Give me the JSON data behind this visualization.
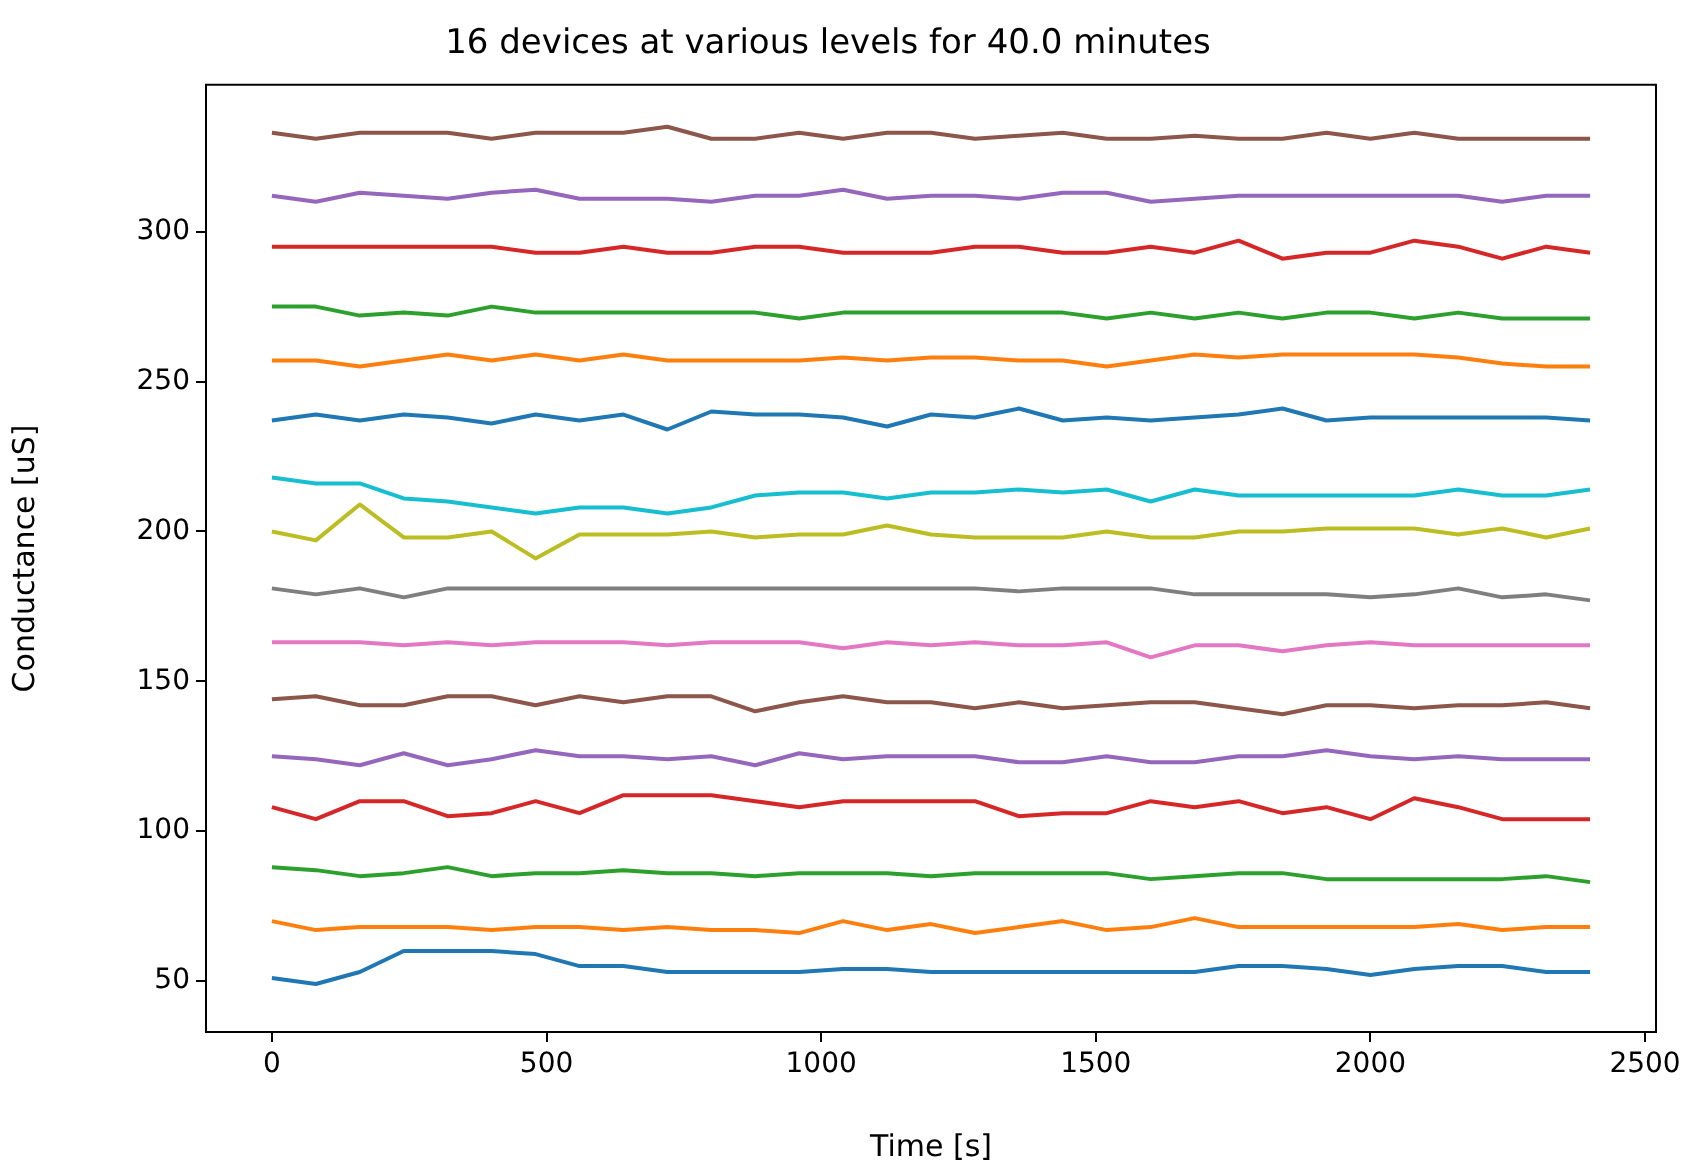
{
  "chart_data": {
    "type": "line",
    "title": "16 devices at various levels for 40.0 minutes",
    "xlabel": "Time [s]",
    "ylabel": "Conductance [uS]",
    "x": [
      0,
      80,
      160,
      240,
      320,
      400,
      480,
      560,
      640,
      720,
      800,
      880,
      960,
      1040,
      1120,
      1200,
      1280,
      1360,
      1440,
      1520,
      1600,
      1680,
      1760,
      1840,
      1920,
      2000,
      2080,
      2160,
      2240,
      2320,
      2400
    ],
    "series": [
      {
        "color": "#1f77b4",
        "values": [
          51,
          49,
          53,
          60,
          60,
          60,
          59,
          55,
          55,
          53,
          53,
          53,
          53,
          54,
          54,
          53,
          53,
          53,
          53,
          53,
          53,
          53,
          55,
          55,
          54,
          52,
          54,
          55,
          55,
          53,
          53
        ]
      },
      {
        "color": "#ff7f0e",
        "values": [
          70,
          67,
          68,
          68,
          68,
          67,
          68,
          68,
          67,
          68,
          67,
          67,
          66,
          70,
          67,
          69,
          66,
          68,
          70,
          67,
          68,
          71,
          68,
          68,
          68,
          68,
          68,
          69,
          67,
          68,
          68
        ]
      },
      {
        "color": "#2ca02c",
        "values": [
          88,
          87,
          85,
          86,
          88,
          85,
          86,
          86,
          87,
          86,
          86,
          85,
          86,
          86,
          86,
          85,
          86,
          86,
          86,
          86,
          84,
          85,
          86,
          86,
          84,
          84,
          84,
          84,
          84,
          85,
          83
        ]
      },
      {
        "color": "#d62728",
        "values": [
          108,
          104,
          110,
          110,
          105,
          106,
          110,
          106,
          112,
          112,
          112,
          110,
          108,
          110,
          110,
          110,
          110,
          105,
          106,
          106,
          110,
          108,
          110,
          106,
          108,
          104,
          111,
          108,
          104,
          104,
          104
        ]
      },
      {
        "color": "#9467bd",
        "values": [
          125,
          124,
          122,
          126,
          122,
          124,
          127,
          125,
          125,
          124,
          125,
          122,
          126,
          124,
          125,
          125,
          125,
          123,
          123,
          125,
          123,
          123,
          125,
          125,
          127,
          125,
          124,
          125,
          124,
          124,
          124
        ]
      },
      {
        "color": "#8c564b",
        "values": [
          144,
          145,
          142,
          142,
          145,
          145,
          142,
          145,
          143,
          145,
          145,
          140,
          143,
          145,
          143,
          143,
          141,
          143,
          141,
          142,
          143,
          143,
          141,
          139,
          142,
          142,
          141,
          142,
          142,
          143,
          141
        ]
      },
      {
        "color": "#e377c2",
        "values": [
          163,
          163,
          163,
          162,
          163,
          162,
          163,
          163,
          163,
          162,
          163,
          163,
          163,
          161,
          163,
          162,
          163,
          162,
          162,
          163,
          158,
          162,
          162,
          160,
          162,
          163,
          162,
          162,
          162,
          162,
          162
        ]
      },
      {
        "color": "#7f7f7f",
        "values": [
          181,
          179,
          181,
          178,
          181,
          181,
          181,
          181,
          181,
          181,
          181,
          181,
          181,
          181,
          181,
          181,
          181,
          180,
          181,
          181,
          181,
          179,
          179,
          179,
          179,
          178,
          179,
          181,
          178,
          179,
          177
        ]
      },
      {
        "color": "#bcbd22",
        "values": [
          200,
          197,
          209,
          198,
          198,
          200,
          191,
          199,
          199,
          199,
          200,
          198,
          199,
          199,
          202,
          199,
          198,
          198,
          198,
          200,
          198,
          198,
          200,
          200,
          201,
          201,
          201,
          199,
          201,
          198,
          201
        ]
      },
      {
        "color": "#17becf",
        "values": [
          218,
          216,
          216,
          211,
          210,
          208,
          206,
          208,
          208,
          206,
          208,
          212,
          213,
          213,
          211,
          213,
          213,
          214,
          213,
          214,
          210,
          214,
          212,
          212,
          212,
          212,
          212,
          214,
          212,
          212,
          214
        ]
      },
      {
        "color": "#1f77b4",
        "values": [
          237,
          239,
          237,
          239,
          238,
          236,
          239,
          237,
          239,
          234,
          240,
          239,
          239,
          238,
          235,
          239,
          238,
          241,
          237,
          238,
          237,
          238,
          239,
          241,
          237,
          238,
          238,
          238,
          238,
          238,
          237
        ]
      },
      {
        "color": "#ff7f0e",
        "values": [
          257,
          257,
          255,
          257,
          259,
          257,
          259,
          257,
          259,
          257,
          257,
          257,
          257,
          258,
          257,
          258,
          258,
          257,
          257,
          255,
          257,
          259,
          258,
          259,
          259,
          259,
          259,
          258,
          256,
          255,
          255
        ]
      },
      {
        "color": "#2ca02c",
        "values": [
          275,
          275,
          272,
          273,
          272,
          275,
          273,
          273,
          273,
          273,
          273,
          273,
          271,
          273,
          273,
          273,
          273,
          273,
          273,
          271,
          273,
          271,
          273,
          271,
          273,
          273,
          271,
          273,
          271,
          271,
          271
        ]
      },
      {
        "color": "#d62728",
        "values": [
          295,
          295,
          295,
          295,
          295,
          295,
          293,
          293,
          295,
          293,
          293,
          295,
          295,
          293,
          293,
          293,
          295,
          295,
          293,
          293,
          295,
          293,
          297,
          291,
          293,
          293,
          297,
          295,
          291,
          295,
          293
        ]
      },
      {
        "color": "#9467bd",
        "values": [
          312,
          310,
          313,
          312,
          311,
          313,
          314,
          311,
          311,
          311,
          310,
          312,
          312,
          314,
          311,
          312,
          312,
          311,
          313,
          313,
          310,
          311,
          312,
          312,
          312,
          312,
          312,
          312,
          310,
          312,
          312
        ]
      },
      {
        "color": "#8c564b",
        "values": [
          333,
          331,
          333,
          333,
          333,
          331,
          333,
          333,
          333,
          335,
          331,
          331,
          333,
          331,
          333,
          333,
          331,
          332,
          333,
          331,
          331,
          332,
          331,
          331,
          333,
          331,
          333,
          331,
          331,
          331,
          331
        ]
      }
    ],
    "xlim": [
      -120,
      2520
    ],
    "xticks": [
      0,
      500,
      1000,
      1500,
      2000,
      2500
    ],
    "ylim": [
      33,
      349
    ],
    "yticks": [
      50,
      100,
      150,
      200,
      250,
      300
    ],
    "grid": false,
    "legend": false,
    "marker": "none",
    "line_style": "solid"
  }
}
